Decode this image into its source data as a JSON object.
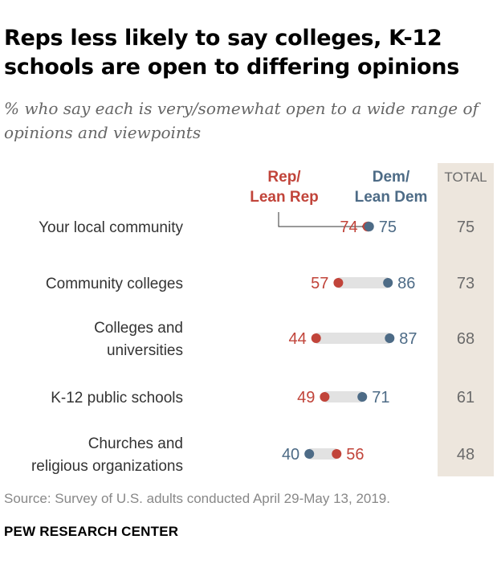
{
  "header": {
    "title": "Reps less likely to say colleges, K-12 schools are open to differing opinions",
    "subtitle": "% who say each is very/somewhat open to a wide range of opinions and viewpoints"
  },
  "colors": {
    "rep": "#c1443a",
    "dem": "#4d6b86",
    "connector": "#e2e2e2",
    "total_bg": "#ede6dd",
    "label": "#333333",
    "total_text": "#6b6b6b"
  },
  "chart_data": {
    "type": "dot-plot",
    "xlim": [
      0,
      100
    ],
    "series": [
      {
        "key": "rep",
        "name_lines": [
          "Rep/",
          "Lean Rep"
        ]
      },
      {
        "key": "dem",
        "name_lines": [
          "Dem/",
          "Lean Dem"
        ]
      }
    ],
    "total_header": "TOTAL",
    "rows": [
      {
        "label_lines": [
          "Your local community"
        ],
        "rep": 74,
        "dem": 75,
        "total": 75
      },
      {
        "label_lines": [
          "Community colleges"
        ],
        "rep": 57,
        "dem": 86,
        "total": 73
      },
      {
        "label_lines": [
          "Colleges and",
          "universities"
        ],
        "rep": 44,
        "dem": 87,
        "total": 68
      },
      {
        "label_lines": [
          "K-12 public schools"
        ],
        "rep": 49,
        "dem": 71,
        "total": 61
      },
      {
        "label_lines": [
          "Churches and",
          "religious organizations"
        ],
        "rep": 56,
        "dem": 40,
        "total": 48
      }
    ]
  },
  "footer": {
    "source": "Source: Survey of U.S. adults conducted April 29-May 13, 2019.",
    "brand": "PEW RESEARCH CENTER"
  }
}
